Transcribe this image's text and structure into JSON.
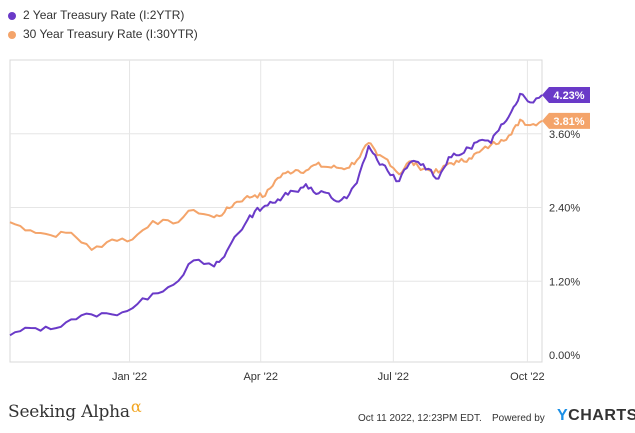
{
  "chart_data": {
    "type": "line",
    "title": "",
    "xlabel": "",
    "ylabel": "",
    "ylim": [
      0.0,
      4.8
    ],
    "y_ticks": [
      "0.00%",
      "1.20%",
      "2.40%",
      "3.60%"
    ],
    "y_tick_values": [
      0.0,
      1.2,
      2.4,
      3.6
    ],
    "x_ticks": [
      {
        "label": "Jan '22",
        "date": "2022-01-01"
      },
      {
        "label": "Apr '22",
        "date": "2022-04-01"
      },
      {
        "label": "Jul '22",
        "date": "2022-07-01"
      },
      {
        "label": "Oct '22",
        "date": "2022-10-01"
      }
    ],
    "x_range": [
      "2021-10-11",
      "2022-10-11"
    ],
    "grid": true,
    "legend_position": "top-left",
    "series": [
      {
        "name": "2 Year Treasury Rate (I:2YTR)",
        "color": "#6a3ac8",
        "last_label": "4.23%",
        "points": [
          [
            "2021-10-11",
            0.32
          ],
          [
            "2021-10-25",
            0.44
          ],
          [
            "2021-11-08",
            0.42
          ],
          [
            "2021-11-22",
            0.58
          ],
          [
            "2021-12-06",
            0.66
          ],
          [
            "2021-12-20",
            0.66
          ],
          [
            "2022-01-03",
            0.76
          ],
          [
            "2022-01-17",
            1.0
          ],
          [
            "2022-01-31",
            1.14
          ],
          [
            "2022-02-14",
            1.54
          ],
          [
            "2022-02-28",
            1.44
          ],
          [
            "2022-03-07",
            1.6
          ],
          [
            "2022-03-14",
            1.92
          ],
          [
            "2022-03-21",
            2.12
          ],
          [
            "2022-03-28",
            2.34
          ],
          [
            "2022-04-04",
            2.43
          ],
          [
            "2022-04-11",
            2.48
          ],
          [
            "2022-04-18",
            2.64
          ],
          [
            "2022-04-25",
            2.66
          ],
          [
            "2022-05-02",
            2.78
          ],
          [
            "2022-05-09",
            2.62
          ],
          [
            "2022-05-16",
            2.64
          ],
          [
            "2022-05-23",
            2.5
          ],
          [
            "2022-05-30",
            2.55
          ],
          [
            "2022-06-06",
            2.8
          ],
          [
            "2022-06-14",
            3.4
          ],
          [
            "2022-06-20",
            3.17
          ],
          [
            "2022-06-27",
            3.0
          ],
          [
            "2022-07-05",
            2.83
          ],
          [
            "2022-07-12",
            3.12
          ],
          [
            "2022-07-18",
            3.14
          ],
          [
            "2022-07-25",
            3.03
          ],
          [
            "2022-08-01",
            2.87
          ],
          [
            "2022-08-08",
            3.22
          ],
          [
            "2022-08-15",
            3.25
          ],
          [
            "2022-08-22",
            3.37
          ],
          [
            "2022-08-29",
            3.49
          ],
          [
            "2022-09-06",
            3.45
          ],
          [
            "2022-09-13",
            3.75
          ],
          [
            "2022-09-20",
            3.96
          ],
          [
            "2022-09-26",
            4.25
          ],
          [
            "2022-10-03",
            4.11
          ],
          [
            "2022-10-11",
            4.23
          ]
        ]
      },
      {
        "name": "30 Year Treasury Rate (I:30YTR)",
        "color": "#f4a46a",
        "last_label": "3.81%",
        "points": [
          [
            "2021-10-11",
            2.16
          ],
          [
            "2021-10-25",
            2.03
          ],
          [
            "2021-11-08",
            1.95
          ],
          [
            "2021-11-22",
            1.99
          ],
          [
            "2021-12-06",
            1.71
          ],
          [
            "2021-12-20",
            1.88
          ],
          [
            "2022-01-03",
            1.88
          ],
          [
            "2022-01-17",
            2.18
          ],
          [
            "2022-01-31",
            2.14
          ],
          [
            "2022-02-14",
            2.36
          ],
          [
            "2022-02-28",
            2.24
          ],
          [
            "2022-03-07",
            2.32
          ],
          [
            "2022-03-14",
            2.47
          ],
          [
            "2022-03-21",
            2.55
          ],
          [
            "2022-03-28",
            2.6
          ],
          [
            "2022-04-04",
            2.59
          ],
          [
            "2022-04-11",
            2.84
          ],
          [
            "2022-04-18",
            2.96
          ],
          [
            "2022-04-25",
            3.01
          ],
          [
            "2022-05-02",
            3.0
          ],
          [
            "2022-05-09",
            3.1
          ],
          [
            "2022-05-16",
            3.06
          ],
          [
            "2022-05-23",
            3.05
          ],
          [
            "2022-05-30",
            3.04
          ],
          [
            "2022-06-06",
            3.17
          ],
          [
            "2022-06-14",
            3.45
          ],
          [
            "2022-06-20",
            3.25
          ],
          [
            "2022-06-27",
            3.18
          ],
          [
            "2022-07-05",
            2.94
          ],
          [
            "2022-07-12",
            3.15
          ],
          [
            "2022-07-18",
            3.07
          ],
          [
            "2022-07-25",
            3.01
          ],
          [
            "2022-08-01",
            2.97
          ],
          [
            "2022-08-08",
            3.12
          ],
          [
            "2022-08-15",
            3.14
          ],
          [
            "2022-08-22",
            3.2
          ],
          [
            "2022-08-29",
            3.3
          ],
          [
            "2022-09-06",
            3.42
          ],
          [
            "2022-09-13",
            3.5
          ],
          [
            "2022-09-20",
            3.59
          ],
          [
            "2022-09-26",
            3.83
          ],
          [
            "2022-10-03",
            3.74
          ],
          [
            "2022-10-11",
            3.81
          ]
        ]
      }
    ]
  },
  "footer": {
    "brand": "Seeking Alpha",
    "brand_mark": "α",
    "timestamp": "Oct 11 2022, 12:23PM EDT.",
    "powered_by": "Powered by",
    "ycharts_y": "Y",
    "ycharts_rest": "CHARTS"
  }
}
